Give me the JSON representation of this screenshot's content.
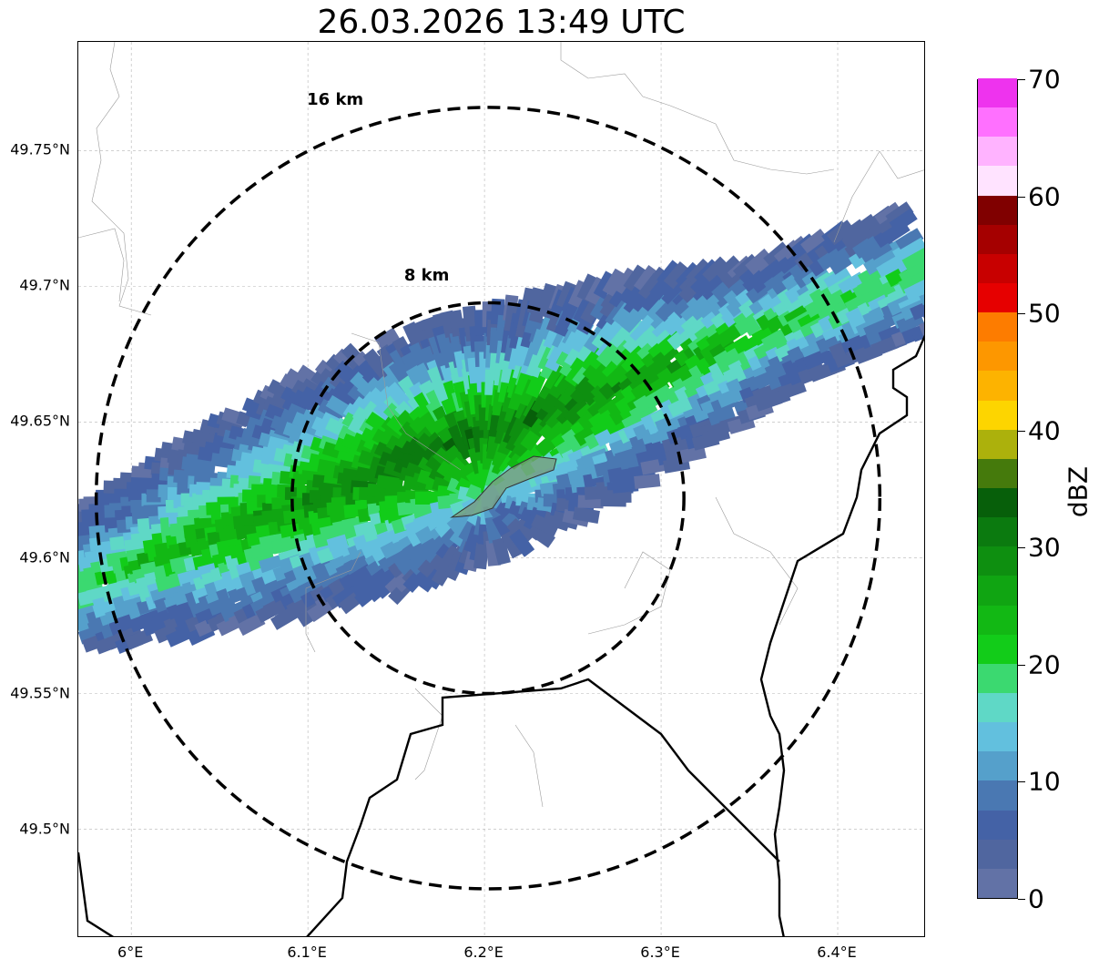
{
  "title": "26.03.2026 13:49 UTC",
  "map": {
    "extent": {
      "lon_min": 5.97,
      "lon_max": 6.45,
      "lat_min": 49.46,
      "lat_max": 49.79
    },
    "radar_center": {
      "lon": 6.202,
      "lat": 49.622
    },
    "lat_ticks": [
      {
        "value": 49.75,
        "label": "49.75°N"
      },
      {
        "value": 49.7,
        "label": "49.7°N"
      },
      {
        "value": 49.65,
        "label": "49.65°N"
      },
      {
        "value": 49.6,
        "label": "49.6°N"
      },
      {
        "value": 49.55,
        "label": "49.55°N"
      },
      {
        "value": 49.5,
        "label": "49.5°N"
      }
    ],
    "lon_ticks": [
      {
        "value": 6.0,
        "label": "6°E"
      },
      {
        "value": 6.1,
        "label": "6.1°E"
      },
      {
        "value": 6.2,
        "label": "6.2°E"
      },
      {
        "value": 6.3,
        "label": "6.3°E"
      },
      {
        "value": 6.4,
        "label": "6.4°E"
      }
    ],
    "range_rings": [
      {
        "radius_km": 8,
        "label": "8 km",
        "style": "dashed",
        "label_lon": 6.155,
        "label_lat": 49.703
      },
      {
        "radius_km": 16,
        "label": "16 km",
        "style": "dashed",
        "label_lon": 6.1,
        "label_lat": 49.768
      }
    ],
    "gridlines": "dashed-gray",
    "echo_band": {
      "description_colors": "reflectivity band oriented WSW-ENE",
      "core_dbz": 32,
      "edge_dbz": 3
    }
  },
  "colorbar": {
    "label": "dBZ",
    "min": 0,
    "max": 70,
    "tick_values": [
      0,
      10,
      20,
      30,
      40,
      50,
      60,
      70
    ],
    "tick_labels": [
      "0",
      "10",
      "20",
      "30",
      "40",
      "50",
      "60",
      "70"
    ],
    "colors": [
      "#6272a6",
      "#50669f",
      "#4462a6",
      "#4a78b2",
      "#55a0cb",
      "#62c0de",
      "#5fd8c6",
      "#3bd970",
      "#12cc19",
      "#12b814",
      "#10a512",
      "#0e8f10",
      "#0b7a0f",
      "#075f0a",
      "#457a0c",
      "#acb10c",
      "#fdd500",
      "#fdb300",
      "#fd9700",
      "#fd7c00",
      "#e60000",
      "#c80000",
      "#a50000",
      "#800000",
      "#ffe3ff",
      "#ffb3ff",
      "#ff70ff",
      "#ee33ee"
    ]
  }
}
